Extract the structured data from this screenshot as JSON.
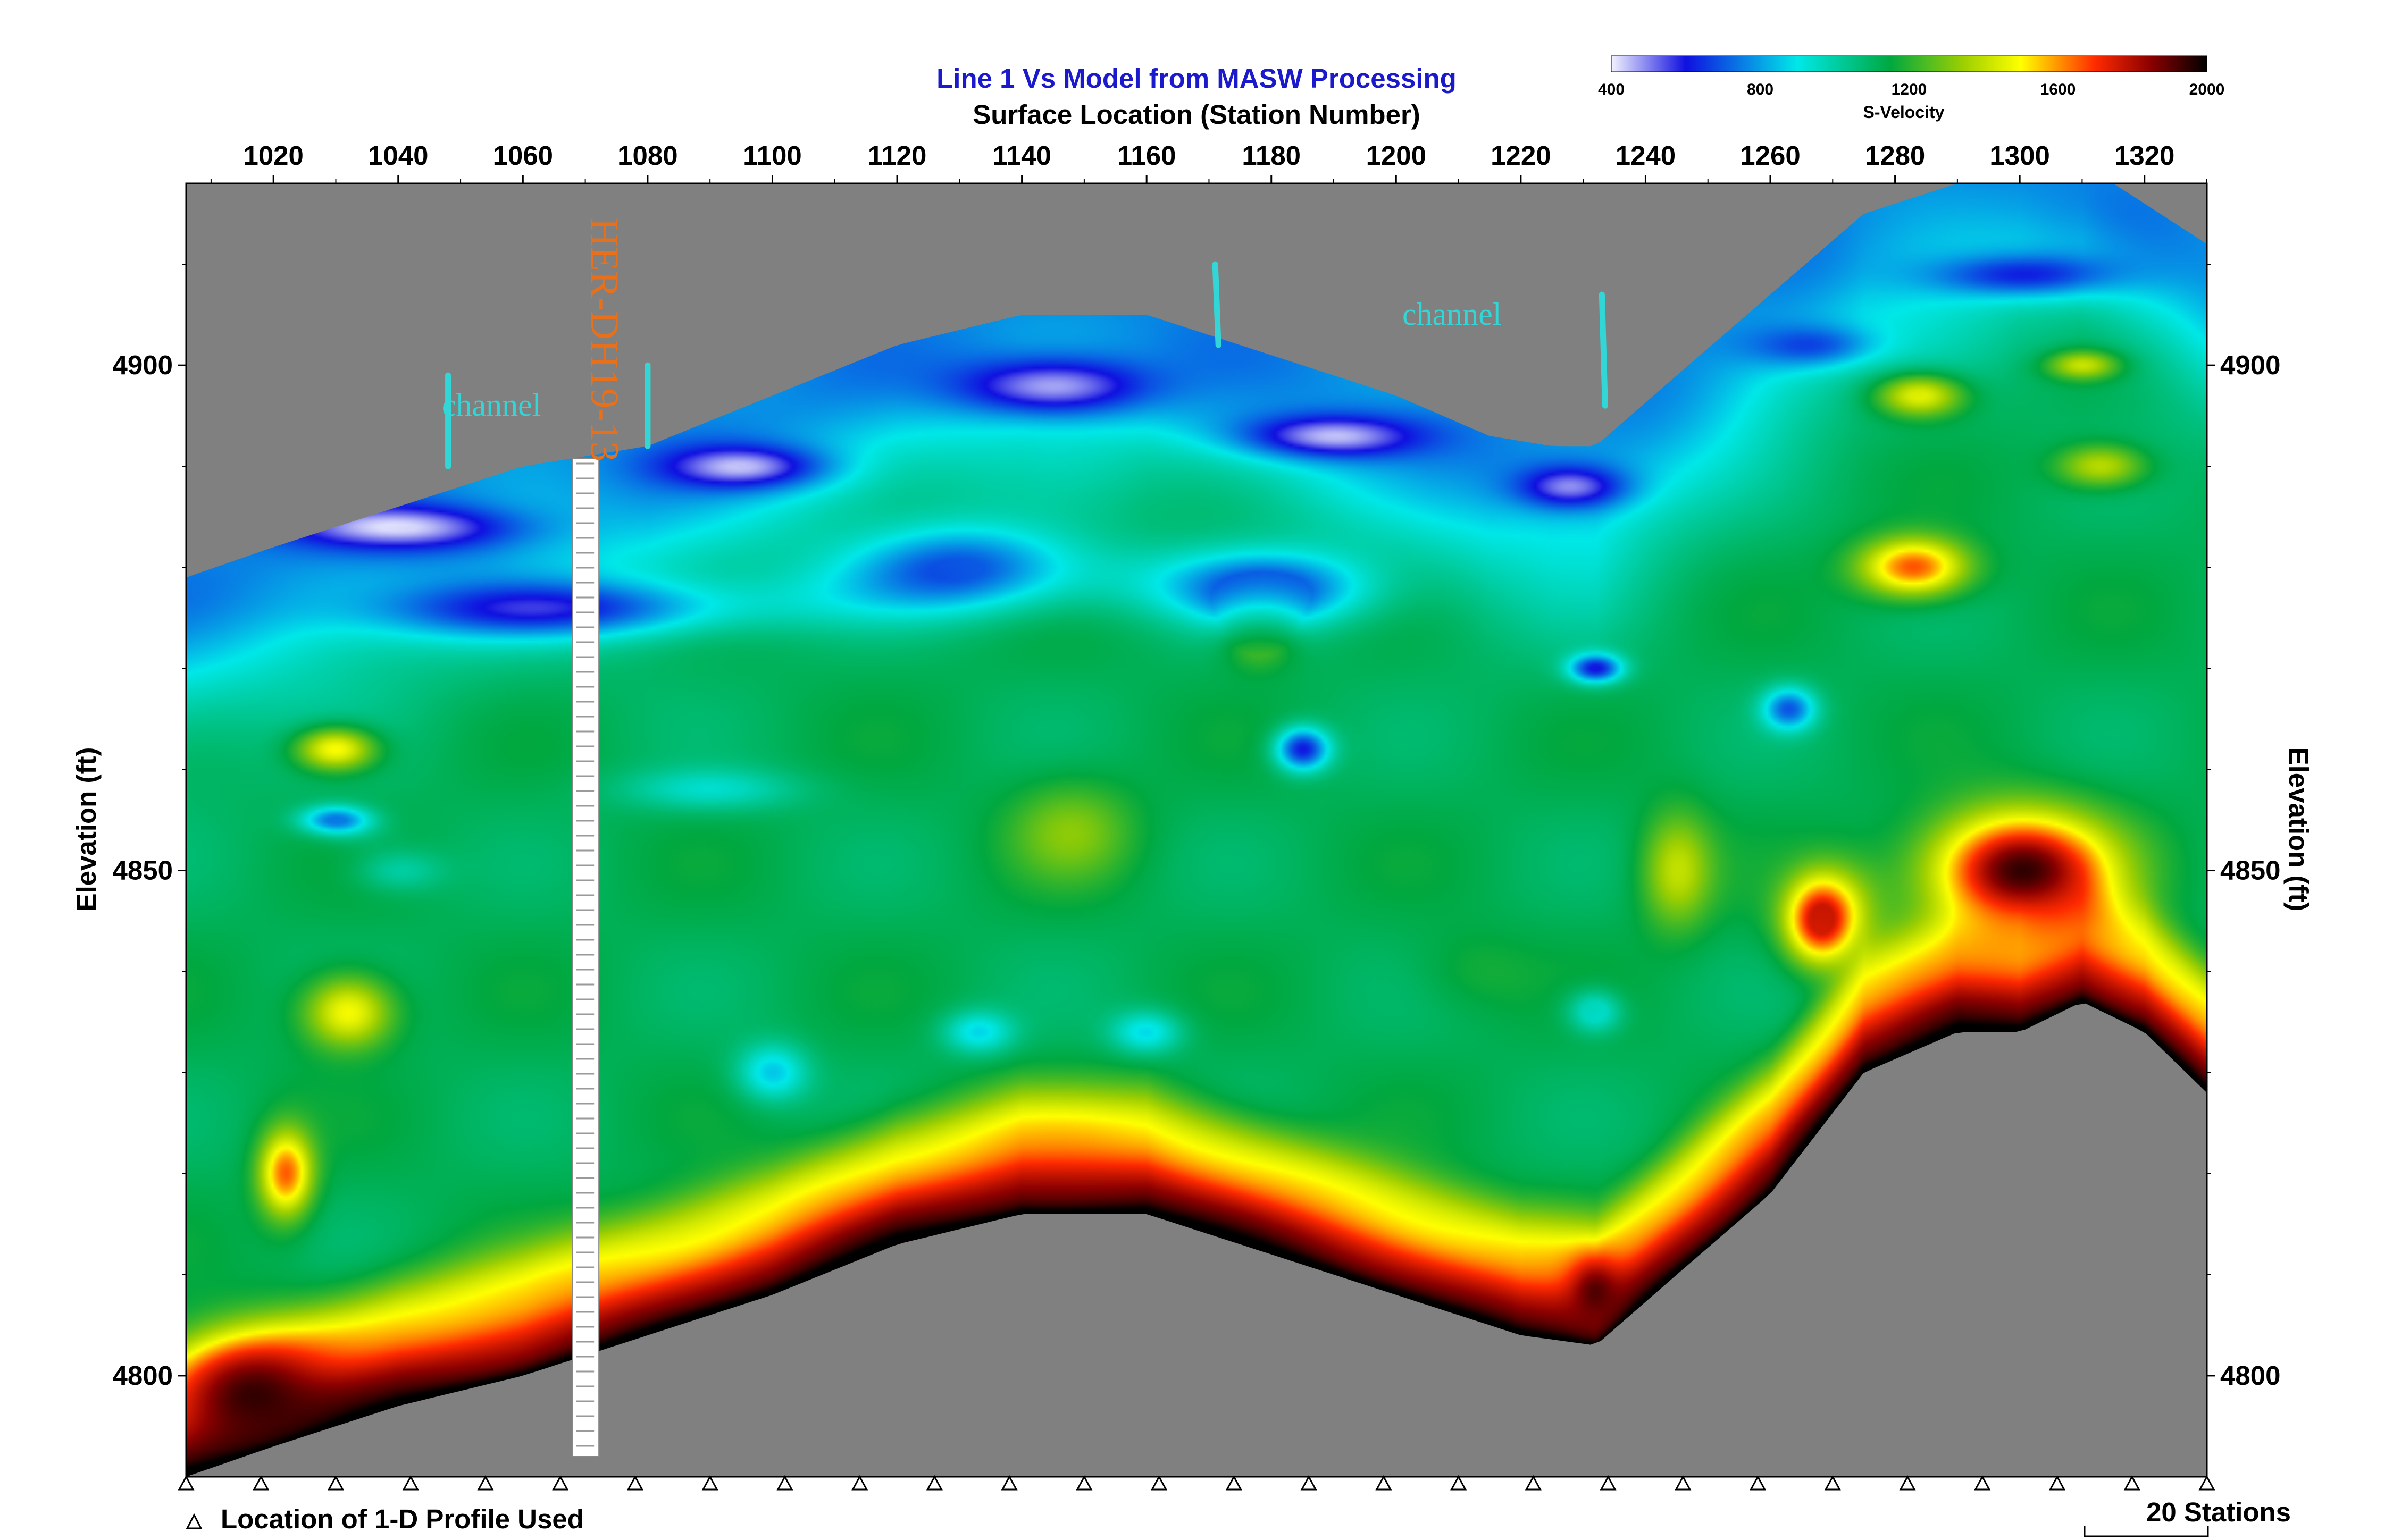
{
  "colors": {
    "background": "#ffffff",
    "no_data": "#808080",
    "title": "#1a1acc",
    "text": "#000000",
    "annotation": "#33d6d6",
    "borehole_label": "#e8701a"
  },
  "chart_data": {
    "type": "heatmap",
    "title": "Line 1 Vs Model from MASW Processing",
    "subtitle": "Surface Location (Station Number)",
    "xlabel": "Surface Location (Station Number)",
    "ylabel": "Elevation (ft)",
    "ylabel_right": "Elevation (ft)",
    "xlim": [
      1006,
      1330
    ],
    "ylim": [
      4790,
      4918
    ],
    "x_ticks": [
      1020,
      1040,
      1060,
      1080,
      1100,
      1120,
      1140,
      1160,
      1180,
      1200,
      1220,
      1240,
      1260,
      1280,
      1300,
      1320
    ],
    "y_ticks": [
      4800,
      4850,
      4900
    ],
    "colorbar": {
      "label": "S-Velocity",
      "min": 400,
      "max": 2000,
      "ticks": [
        400,
        800,
        1200,
        1600,
        2000
      ],
      "stops": [
        {
          "v": 400,
          "c": "#f2f2ff"
        },
        {
          "v": 600,
          "c": "#1010e0"
        },
        {
          "v": 900,
          "c": "#00e8e8"
        },
        {
          "v": 1150,
          "c": "#00a840"
        },
        {
          "v": 1350,
          "c": "#a0d000"
        },
        {
          "v": 1500,
          "c": "#ffff00"
        },
        {
          "v": 1700,
          "c": "#ff2a00"
        },
        {
          "v": 1850,
          "c": "#8a0000"
        },
        {
          "v": 2000,
          "c": "#000000"
        }
      ]
    },
    "top_surface": [
      [
        1006,
        4879
      ],
      [
        1020,
        4882
      ],
      [
        1040,
        4886
      ],
      [
        1060,
        4890
      ],
      [
        1070,
        4891
      ],
      [
        1080,
        4892
      ],
      [
        1100,
        4897
      ],
      [
        1120,
        4902
      ],
      [
        1140,
        4905
      ],
      [
        1160,
        4905
      ],
      [
        1180,
        4901
      ],
      [
        1200,
        4897
      ],
      [
        1215,
        4893
      ],
      [
        1225,
        4892
      ],
      [
        1232,
        4892
      ],
      [
        1245,
        4899
      ],
      [
        1260,
        4907
      ],
      [
        1275,
        4915
      ],
      [
        1290,
        4918
      ],
      [
        1300,
        4920
      ],
      [
        1310,
        4920
      ],
      [
        1320,
        4916
      ],
      [
        1330,
        4912
      ]
    ],
    "bottom_surface": [
      [
        1006,
        4790
      ],
      [
        1020,
        4793
      ],
      [
        1040,
        4797
      ],
      [
        1060,
        4800
      ],
      [
        1080,
        4804
      ],
      [
        1100,
        4808
      ],
      [
        1120,
        4813
      ],
      [
        1140,
        4816
      ],
      [
        1160,
        4816
      ],
      [
        1180,
        4812
      ],
      [
        1200,
        4808
      ],
      [
        1220,
        4804
      ],
      [
        1232,
        4803
      ],
      [
        1245,
        4810
      ],
      [
        1260,
        4818
      ],
      [
        1275,
        4830
      ],
      [
        1290,
        4834
      ],
      [
        1300,
        4834
      ],
      [
        1310,
        4837
      ],
      [
        1320,
        4834
      ],
      [
        1330,
        4828
      ]
    ],
    "velocity_model": {
      "background": 1120,
      "features": [
        {
          "x": 1040,
          "y": 4884,
          "sx": 25,
          "sy": 3,
          "v": 430
        },
        {
          "x": 1095,
          "y": 4890,
          "sx": 18,
          "sy": 3,
          "v": 470
        },
        {
          "x": 1145,
          "y": 4898,
          "sx": 22,
          "sy": 4,
          "v": 440
        },
        {
          "x": 1190,
          "y": 4893,
          "sx": 20,
          "sy": 3,
          "v": 450
        },
        {
          "x": 1228,
          "y": 4888,
          "sx": 12,
          "sy": 3,
          "v": 450
        },
        {
          "x": 1062,
          "y": 4876,
          "sx": 40,
          "sy": 4,
          "v": 600
        },
        {
          "x": 1130,
          "y": 4880,
          "sx": 25,
          "sy": 6,
          "v": 700
        },
        {
          "x": 1180,
          "y": 4878,
          "sx": 22,
          "sy": 5,
          "v": 680
        },
        {
          "x": 1232,
          "y": 4870,
          "sx": 6,
          "sy": 2,
          "v": 600
        },
        {
          "x": 1185,
          "y": 4862,
          "sx": 6,
          "sy": 3,
          "v": 600
        },
        {
          "x": 1030,
          "y": 4855,
          "sx": 8,
          "sy": 2,
          "v": 720
        },
        {
          "x": 1265,
          "y": 4902,
          "sx": 15,
          "sy": 3,
          "v": 640
        },
        {
          "x": 1300,
          "y": 4909,
          "sx": 22,
          "sy": 3,
          "v": 620
        },
        {
          "x": 1263,
          "y": 4866,
          "sx": 6,
          "sy": 3,
          "v": 720
        },
        {
          "x": 1030,
          "y": 4862,
          "sx": 9,
          "sy": 3,
          "v": 1530
        },
        {
          "x": 1032,
          "y": 4836,
          "sx": 10,
          "sy": 5,
          "v": 1520
        },
        {
          "x": 1148,
          "y": 4854,
          "sx": 14,
          "sy": 7,
          "v": 1300
        },
        {
          "x": 1212,
          "y": 4840,
          "sx": 14,
          "sy": 6,
          "v": 1180
        },
        {
          "x": 1178,
          "y": 4873,
          "sx": 8,
          "sy": 4,
          "v": 1350
        },
        {
          "x": 1283,
          "y": 4880,
          "sx": 12,
          "sy": 4,
          "v": 1680
        },
        {
          "x": 1284,
          "y": 4897,
          "sx": 10,
          "sy": 3,
          "v": 1480
        },
        {
          "x": 1313,
          "y": 4890,
          "sx": 10,
          "sy": 3,
          "v": 1420
        },
        {
          "x": 1310,
          "y": 4900,
          "sx": 8,
          "sy": 2,
          "v": 1380
        },
        {
          "x": 1268,
          "y": 4845,
          "sx": 8,
          "sy": 6,
          "v": 1750
        },
        {
          "x": 1300,
          "y": 4850,
          "sx": 20,
          "sy": 8,
          "v": 1950
        },
        {
          "x": 1245,
          "y": 4850,
          "sx": 8,
          "sy": 8,
          "v": 1400
        },
        {
          "x": 1100,
          "y": 4830,
          "sx": 8,
          "sy": 4,
          "v": 850
        },
        {
          "x": 1133,
          "y": 4834,
          "sx": 8,
          "sy": 3,
          "v": 880
        },
        {
          "x": 1160,
          "y": 4834,
          "sx": 8,
          "sy": 3,
          "v": 880
        },
        {
          "x": 1232,
          "y": 4836,
          "sx": 6,
          "sy": 3,
          "v": 900
        },
        {
          "x": 1016,
          "y": 4798,
          "sx": 18,
          "sy": 8,
          "v": 1950
        },
        {
          "x": 1022,
          "y": 4820,
          "sx": 6,
          "sy": 6,
          "v": 1650
        },
        {
          "x": 1232,
          "y": 4808,
          "sx": 6,
          "sy": 5,
          "v": 1900
        },
        {
          "x": 1040,
          "y": 4850,
          "sx": 10,
          "sy": 3,
          "v": 980
        },
        {
          "x": 1090,
          "y": 4858,
          "sx": 20,
          "sy": 3,
          "v": 950
        }
      ],
      "base_bands": [
        {
          "offset": 3,
          "v": 1700
        },
        {
          "offset": 9,
          "v": 1500
        }
      ]
    },
    "borehole": {
      "label": "HER-DH19-13",
      "station": 1068
    },
    "annotations": [
      {
        "text": "channel",
        "x": 1047,
        "y": 4895
      },
      {
        "text": "channel",
        "x": 1201,
        "y": 4904
      }
    ],
    "channel_markers": [
      {
        "station": 1048,
        "top": 4899,
        "bottom": 4890
      },
      {
        "station": 1080,
        "top": 4900,
        "bottom": 4892
      },
      {
        "station": 1171,
        "top": 4910,
        "bottom": 4902
      },
      {
        "station": 1233,
        "top": 4907,
        "bottom": 4896
      }
    ],
    "profile_locations": [
      1006,
      1018,
      1030,
      1042,
      1054,
      1066,
      1078,
      1090,
      1102,
      1114,
      1126,
      1138,
      1150,
      1162,
      1174,
      1186,
      1198,
      1210,
      1222,
      1234,
      1246,
      1258,
      1270,
      1282,
      1294,
      1306,
      1318,
      1330
    ],
    "legend_text": "Location of 1-D Profile Used",
    "scale_text": "20 Stations"
  }
}
